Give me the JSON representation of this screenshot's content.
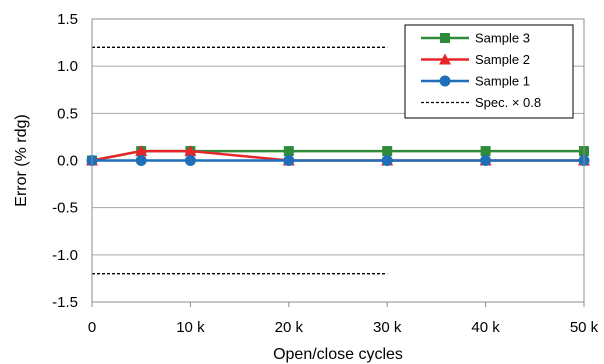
{
  "chart_data": {
    "type": "line",
    "title": "",
    "xlabel": "Open/close cycles",
    "ylabel": "Error (% rdg)",
    "xlim": [
      0,
      50000
    ],
    "ylim": [
      -1.5,
      1.5
    ],
    "x_ticks": [
      {
        "value": 0,
        "label": "0"
      },
      {
        "value": 10000,
        "label": "10 k"
      },
      {
        "value": 20000,
        "label": "20 k"
      },
      {
        "value": 30000,
        "label": "30 k"
      },
      {
        "value": 40000,
        "label": "40 k"
      },
      {
        "value": 50000,
        "label": "50 k"
      }
    ],
    "y_ticks": [
      {
        "value": 1.5,
        "label": "1.5"
      },
      {
        "value": 1.0,
        "label": "1.0"
      },
      {
        "value": 0.5,
        "label": "0.5"
      },
      {
        "value": 0.0,
        "label": "0.0"
      },
      {
        "value": -0.5,
        "label": "-0.5"
      },
      {
        "value": -1.0,
        "label": "-1.0"
      },
      {
        "value": -1.5,
        "label": "-1.5"
      }
    ],
    "grid": "horizontal",
    "legend_position": "top-right",
    "series": [
      {
        "name": "Sample 3",
        "color": "#2e8b3a",
        "marker": "square",
        "x": [
          0,
          5000,
          10000,
          20000,
          30000,
          40000,
          50000
        ],
        "y": [
          0.0,
          0.1,
          0.1,
          0.1,
          0.1,
          0.1,
          0.1
        ]
      },
      {
        "name": "Sample 2",
        "color": "#e8262a",
        "marker": "triangle",
        "x": [
          0,
          5000,
          10000,
          20000,
          30000,
          40000,
          50000
        ],
        "y": [
          0.0,
          0.1,
          0.1,
          0.0,
          0.0,
          0.0,
          0.0
        ]
      },
      {
        "name": "Sample 1",
        "color": "#1f6fb8",
        "marker": "circle",
        "x": [
          0,
          5000,
          10000,
          20000,
          30000,
          40000,
          50000
        ],
        "y": [
          0.0,
          0.0,
          0.0,
          0.0,
          0.0,
          0.0,
          0.0
        ]
      }
    ],
    "spec_lines": {
      "name": "Spec. × 0.8",
      "color": "#000000",
      "x": [
        0,
        30000
      ],
      "y_values": [
        1.2,
        -1.2
      ]
    }
  }
}
